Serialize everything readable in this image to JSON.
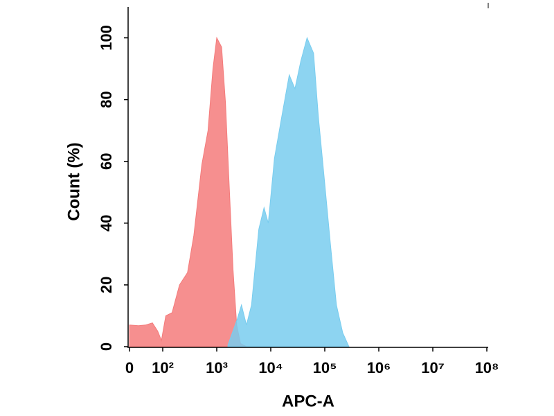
{
  "chart_data": {
    "type": "area",
    "x_label": "APC-A",
    "y_label": "Count  (%)",
    "x_scale": "biexponential",
    "xlim": [
      0,
      100000000
    ],
    "ylim": [
      0,
      110
    ],
    "xticks": [
      0,
      {
        "value": 100,
        "label": "10²"
      },
      {
        "value": 1000,
        "label": "10³"
      },
      {
        "value": 10000,
        "label": "10⁴"
      },
      {
        "value": 100000,
        "label": "10⁵"
      },
      {
        "value": 1000000,
        "label": "10⁶"
      },
      {
        "value": 10000000,
        "label": "10⁷"
      },
      {
        "value": 100000000,
        "label": "10⁸"
      }
    ],
    "yticks": [
      0,
      20,
      40,
      60,
      80,
      100
    ],
    "series": [
      {
        "color": "#f47b7b",
        "x": [
          0,
          27,
          48,
          69,
          85,
          96,
          114,
          149,
          204,
          288,
          376,
          530,
          690,
          850,
          1000,
          1230,
          1450,
          1700,
          2000,
          2340,
          2750,
          3550
        ],
        "values": [
          7,
          6.8,
          7,
          7.7,
          5,
          2,
          10,
          11,
          20,
          24,
          36,
          59,
          70,
          90,
          100,
          97,
          79,
          52,
          25,
          7,
          1,
          0
        ]
      },
      {
        "color": "#79cdef",
        "x": [
          1610,
          2400,
          2870,
          3550,
          4400,
          6000,
          7500,
          9000,
          11700,
          16000,
          22000,
          28000,
          36000,
          47000,
          62000,
          76000,
          96000,
          126000,
          164000,
          215000,
          280000
        ],
        "values": [
          0.5,
          9,
          13.5,
          7,
          13.5,
          38,
          45,
          40,
          61,
          74.5,
          88,
          83.5,
          92.5,
          100,
          95,
          74.5,
          56,
          34,
          13.5,
          4.5,
          0
        ]
      }
    ]
  }
}
